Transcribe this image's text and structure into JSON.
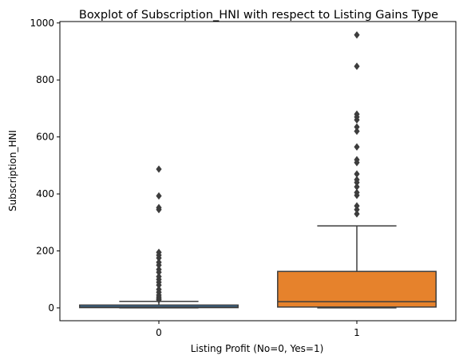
{
  "chart_data": {
    "type": "boxplot",
    "title": "Boxplot of Subscription_HNI with respect to Listing Gains Type",
    "xlabel": "Listing Profit (No=0, Yes=1)",
    "ylabel": "Subscription_HNI",
    "ylim": [
      -45,
      1005
    ],
    "yticks": [
      0,
      200,
      400,
      600,
      800,
      1000
    ],
    "grid": false,
    "legend": "none",
    "categories": [
      "0",
      "1"
    ],
    "boxes": [
      {
        "category": "0",
        "color": "#3a75a8",
        "min": 0,
        "q1": 1,
        "median": 3,
        "q3": 10,
        "max": 23,
        "outliers": [
          28,
          32,
          38,
          45,
          55,
          65,
          80,
          90,
          100,
          110,
          125,
          135,
          150,
          160,
          175,
          185,
          195,
          345,
          352,
          393,
          487
        ]
      },
      {
        "category": "1",
        "color": "#e6822c",
        "min": 0,
        "q1": 3,
        "median": 22,
        "q3": 128,
        "max": 288,
        "outliers": [
          330,
          345,
          358,
          395,
          405,
          425,
          440,
          450,
          470,
          510,
          520,
          565,
          620,
          635,
          660,
          670,
          680,
          848,
          958
        ]
      }
    ]
  }
}
